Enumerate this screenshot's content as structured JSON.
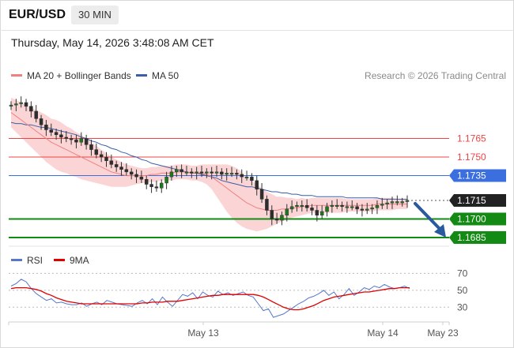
{
  "header": {
    "symbol": "EUR/USD",
    "timeframe": "30 MIN",
    "datetime": "Thursday, May 14, 2026 3:48:08 AM CET"
  },
  "legend": {
    "ma20_label": "MA 20 + Bollinger Bands",
    "ma50_label": "MA 50",
    "credit": "Research © 2026 Trading Central",
    "rsi_label": "RSI",
    "ma9_label": "9MA"
  },
  "colors": {
    "ma20": "#f08080",
    "ma50": "#3a5fa8",
    "bollinger_fill": "#fbd5d5",
    "resistance": "#ef4444",
    "pivot": "#3b6fe0",
    "support": "#138a13",
    "current": "#222222",
    "candle": "#1a7a1a",
    "rsi": "#5577cc",
    "rsi_ma": "#e00000",
    "arrow": "#2a5a9e"
  },
  "chart_data": [
    {
      "type": "candlestick",
      "ylim": [
        1.1678,
        1.1808
      ],
      "levels": [
        {
          "value": 1.1765,
          "label": "1.1765",
          "kind": "resistance"
        },
        {
          "value": 1.175,
          "label": "1.1750",
          "kind": "resistance"
        },
        {
          "value": 1.1735,
          "label": "1.1735",
          "kind": "pivot"
        },
        {
          "value": 1.1715,
          "label": "1.1715",
          "kind": "current"
        },
        {
          "value": 1.17,
          "label": "1.1700",
          "kind": "support"
        },
        {
          "value": 1.1685,
          "label": "1.1685",
          "kind": "support"
        }
      ],
      "x_ticks": [
        "May 13",
        "May 14",
        "May 23"
      ],
      "forecast": {
        "from": 1.1715,
        "to": 1.1685,
        "direction": "down"
      },
      "price": [
        1.1792,
        1.1793,
        1.1794,
        1.1791,
        1.1787,
        1.1781,
        1.1776,
        1.1772,
        1.177,
        1.1768,
        1.1766,
        1.1765,
        1.1764,
        1.1762,
        1.1765,
        1.176,
        1.1756,
        1.1752,
        1.175,
        1.1747,
        1.1744,
        1.1742,
        1.174,
        1.1738,
        1.1736,
        1.1734,
        1.1732,
        1.1728,
        1.1726,
        1.1725,
        1.1729,
        1.1734,
        1.1738,
        1.174,
        1.1738,
        1.1738,
        1.1737,
        1.1738,
        1.1737,
        1.1738,
        1.1737,
        1.1738,
        1.1736,
        1.1737,
        1.1737,
        1.1736,
        1.1734,
        1.1734,
        1.1731,
        1.1724,
        1.1716,
        1.1707,
        1.17,
        1.1699,
        1.1703,
        1.1708,
        1.171,
        1.1711,
        1.1711,
        1.1709,
        1.1707,
        1.1703,
        1.1706,
        1.171,
        1.1711,
        1.1711,
        1.171,
        1.171,
        1.171,
        1.1708,
        1.1707,
        1.1708,
        1.1709,
        1.1711,
        1.1712,
        1.1713,
        1.1714,
        1.1714,
        1.1714,
        1.1715
      ],
      "ma20": [
        1.1786,
        1.1783,
        1.178,
        1.1777,
        1.1774,
        1.1771,
        1.1768,
        1.1765,
        1.1762,
        1.176,
        1.1758,
        1.1756,
        1.1754,
        1.1752,
        1.175,
        1.1748,
        1.1746,
        1.1744,
        1.1742,
        1.174,
        1.1738,
        1.1737,
        1.1736,
        1.1735,
        1.1735,
        1.1735,
        1.1735,
        1.1735,
        1.1736,
        1.1736,
        1.1737,
        1.1737,
        1.1737,
        1.1738,
        1.1738,
        1.1738,
        1.1737,
        1.1737,
        1.1737,
        1.1736,
        1.1734,
        1.1731,
        1.1728,
        1.1725,
        1.1722,
        1.1719,
        1.1716,
        1.1713,
        1.1711,
        1.1709,
        1.1708,
        1.1707,
        1.1707,
        1.1707,
        1.1708,
        1.1708,
        1.1709,
        1.1709,
        1.171,
        1.171,
        1.1711,
        1.1711,
        1.1711,
        1.1711,
        1.1711,
        1.1711,
        1.1711,
        1.1711,
        1.1711,
        1.1711,
        1.1711,
        1.1711,
        1.1711,
        1.1712,
        1.1712,
        1.1712,
        1.1712,
        1.1712,
        1.1712,
        1.1712
      ],
      "ma50": [
        1.1778,
        1.1777,
        1.1777,
        1.1776,
        1.1776,
        1.1775,
        1.1774,
        1.1774,
        1.1773,
        1.1772,
        1.1771,
        1.177,
        1.1769,
        1.1768,
        1.1766,
        1.1765,
        1.1763,
        1.1762,
        1.176,
        1.1759,
        1.1757,
        1.1756,
        1.1754,
        1.1753,
        1.1751,
        1.175,
        1.1748,
        1.1747,
        1.1745,
        1.1744,
        1.1743,
        1.1742,
        1.1741,
        1.174,
        1.1739,
        1.1738,
        1.1737,
        1.1737,
        1.1736,
        1.1735,
        1.1734,
        1.1733,
        1.1731,
        1.173,
        1.1729,
        1.1728,
        1.1727,
        1.1726,
        1.1726,
        1.1725,
        1.1724,
        1.1723,
        1.1722,
        1.1722,
        1.1721,
        1.1721,
        1.172,
        1.172,
        1.1719,
        1.1719,
        1.1719,
        1.1718,
        1.1718,
        1.1718,
        1.1718,
        1.1718,
        1.1718,
        1.1717,
        1.1717,
        1.1717,
        1.1717,
        1.1717,
        1.1717,
        1.1717,
        1.1716,
        1.1716,
        1.1716,
        1.1716,
        1.1716,
        1.1716
      ],
      "band": [
        0.0012,
        0.0013,
        0.0014,
        0.0015,
        0.0016,
        0.0017,
        0.0018,
        0.0019,
        0.0019,
        0.002,
        0.002,
        0.0019,
        0.0019,
        0.0018,
        0.0018,
        0.0017,
        0.0016,
        0.0015,
        0.0014,
        0.0013,
        0.0012,
        0.0011,
        0.001,
        0.0009,
        0.0008,
        0.0007,
        0.0006,
        0.0006,
        0.0006,
        0.0006,
        0.0006,
        0.0006,
        0.0006,
        0.0006,
        0.0006,
        0.0006,
        0.0006,
        0.0006,
        0.0007,
        0.0008,
        0.001,
        0.0013,
        0.0016,
        0.0019,
        0.0021,
        0.0022,
        0.0022,
        0.0021,
        0.002,
        0.0019,
        0.0017,
        0.0015,
        0.0013,
        0.0011,
        0.001,
        0.0009,
        0.0008,
        0.0007,
        0.0007,
        0.0006,
        0.0006,
        0.0006,
        0.0006,
        0.0006,
        0.0006,
        0.0006,
        0.0006,
        0.0005,
        0.0005,
        0.0005,
        0.0005,
        0.0005,
        0.0005,
        0.0005,
        0.0005,
        0.0005,
        0.0005,
        0.0004,
        0.0004,
        0.0004
      ]
    },
    {
      "type": "line",
      "ylim": [
        20,
        76
      ],
      "y_ticks": [
        70,
        50,
        30
      ],
      "series": [
        {
          "name": "RSI",
          "values": [
            55,
            58,
            63,
            60,
            52,
            46,
            42,
            38,
            40,
            35,
            36,
            34,
            33,
            33,
            35,
            31,
            34,
            36,
            33,
            38,
            36,
            34,
            33,
            32,
            31,
            35,
            38,
            34,
            40,
            33,
            42,
            36,
            31,
            38,
            45,
            43,
            47,
            40,
            48,
            44,
            42,
            49,
            45,
            47,
            44,
            46,
            48,
            44,
            42,
            34,
            26,
            28,
            18,
            20,
            22,
            26,
            30,
            34,
            37,
            41,
            43,
            46,
            50,
            44,
            48,
            40,
            45,
            52,
            44,
            48,
            53,
            51,
            55,
            53,
            57,
            54,
            52,
            53,
            55,
            52
          ]
        },
        {
          "name": "9MA",
          "values": [
            52,
            53,
            53,
            53,
            52,
            51,
            49,
            46,
            44,
            41,
            39,
            37,
            36,
            35,
            34,
            34,
            34,
            34,
            34,
            34,
            34,
            34,
            34,
            34,
            34,
            34,
            35,
            35,
            36,
            36,
            36,
            37,
            37,
            37,
            38,
            39,
            40,
            41,
            42,
            43,
            44,
            44,
            45,
            45,
            45,
            45,
            45,
            45,
            45,
            44,
            42,
            39,
            36,
            33,
            30,
            28,
            27,
            27,
            28,
            30,
            32,
            35,
            38,
            40,
            42,
            43,
            44,
            45,
            46,
            47,
            48,
            48,
            49,
            50,
            51,
            52,
            52,
            53,
            53,
            53
          ]
        }
      ]
    }
  ],
  "rsi_ticks": [
    "70",
    "50",
    "30"
  ]
}
